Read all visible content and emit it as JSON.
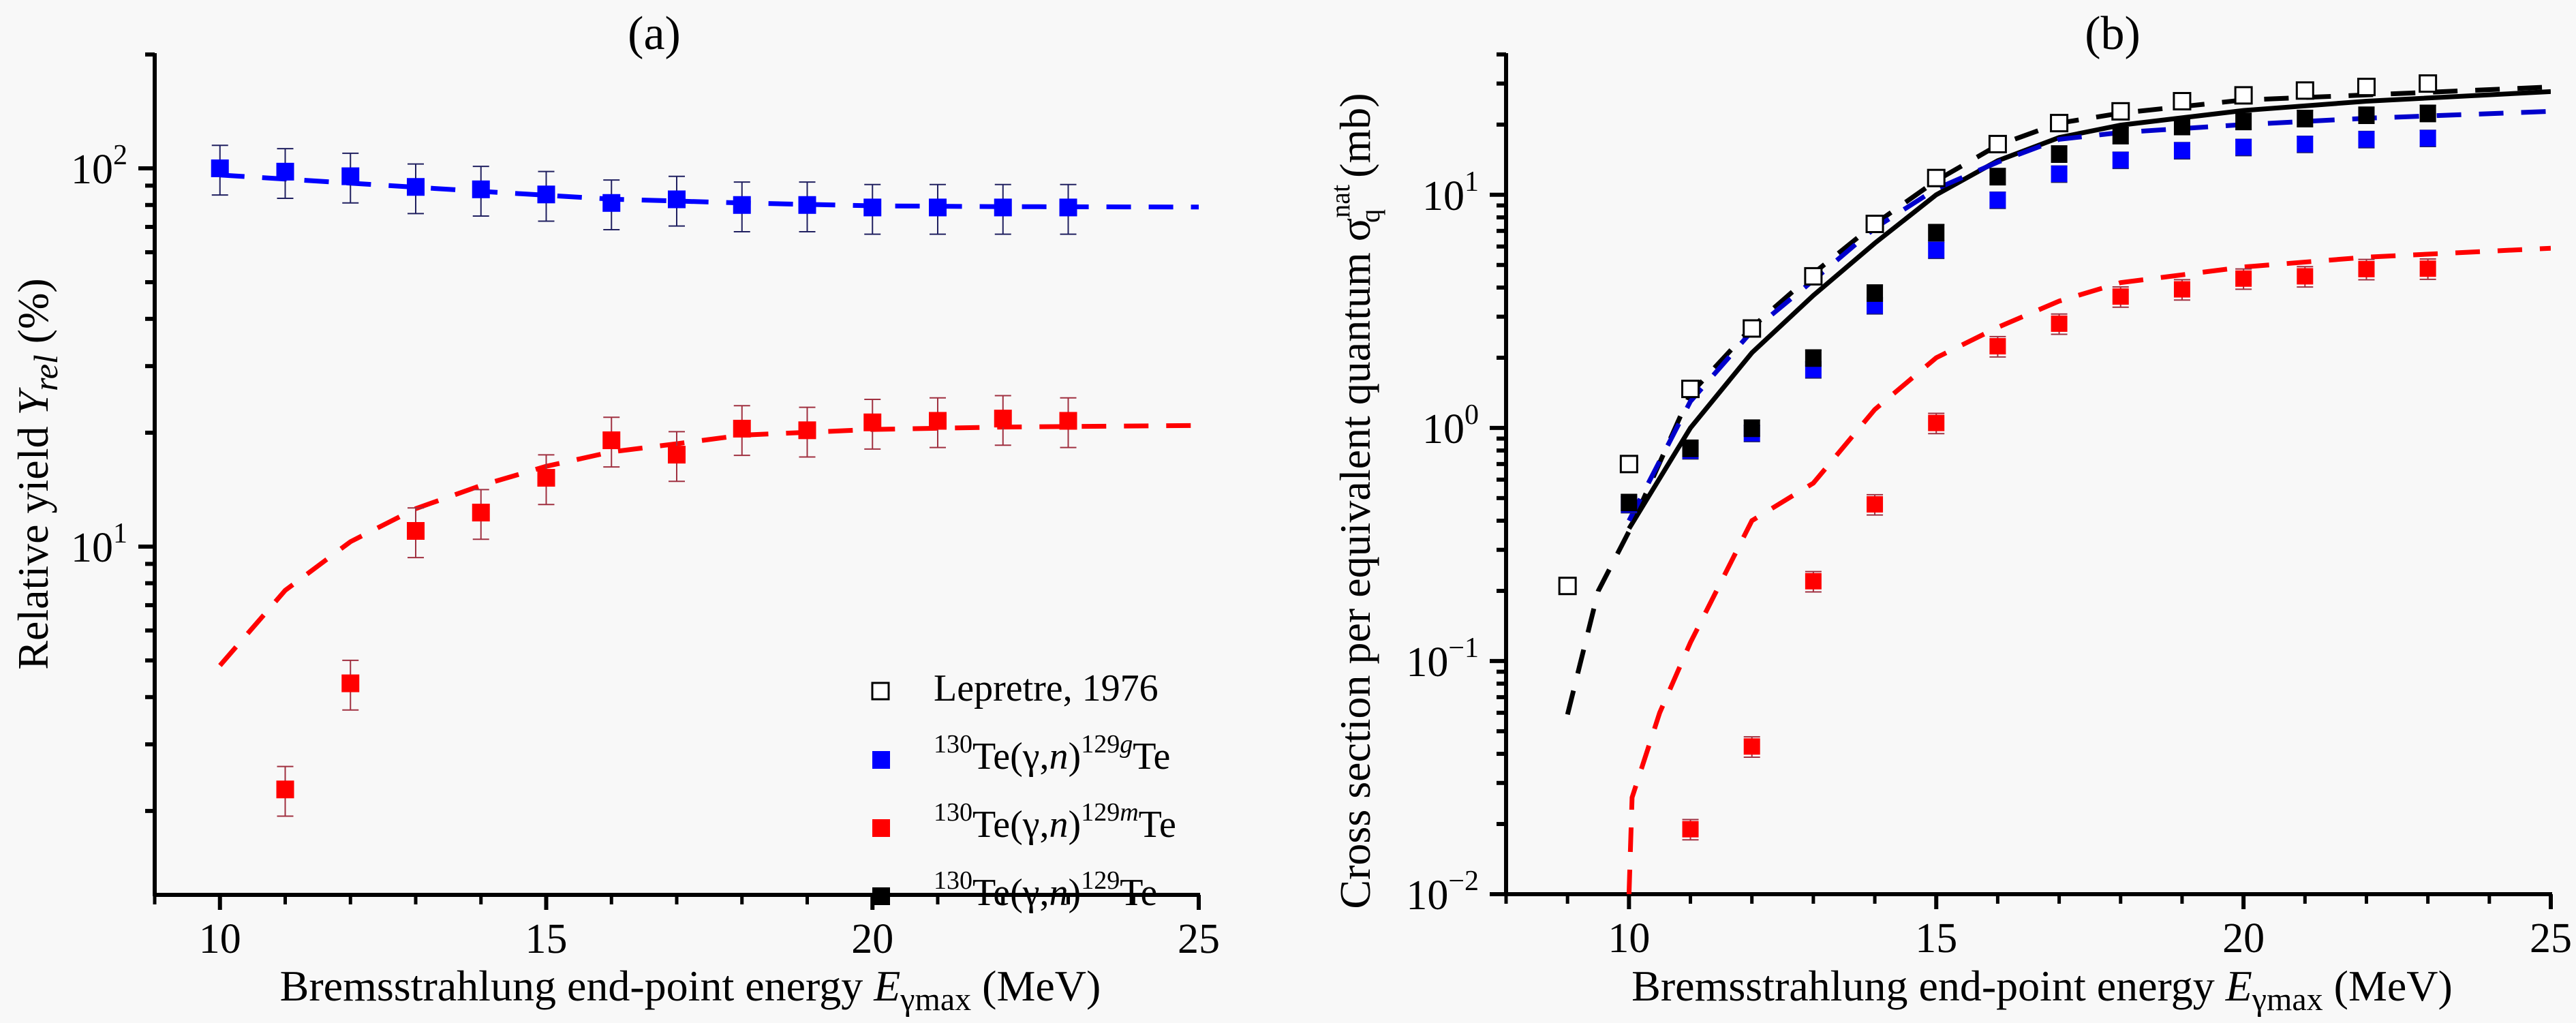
{
  "chart_data": [
    {
      "id": "a",
      "type": "scatter",
      "title": "(a)",
      "xlabel": "Bremsstrahlung end-point energy E",
      "xlabel_sub": "γmax",
      "xlabel_unit": " (MeV)",
      "ylabel": "Relative yield Y",
      "ylabel_sub": "rel",
      "ylabel_unit": " (%)",
      "xscale": "linear",
      "yscale": "log",
      "xlim": [
        9,
        25
      ],
      "ylim": [
        1.2,
        201.6
      ],
      "xticks": [
        10,
        15,
        20,
        25
      ],
      "xtick_labels": [
        "10",
        "15",
        "20",
        "25"
      ],
      "yticks": [
        10,
        100
      ],
      "ytick_labels": [
        {
          "base": "10",
          "exp": "1"
        },
        {
          "base": "10",
          "exp": "2"
        }
      ],
      "grid": false,
      "legend": {
        "placement": "bottom-right",
        "entries": [
          {
            "marker": "open-square",
            "color": "#000000",
            "label": "Lepretre, 1976",
            "parts": [
              {
                "t": "Lepretre, 1976",
                "s": "n"
              }
            ]
          },
          {
            "marker": "filled-square",
            "color": "#0000ff",
            "label": "130Te(γ,n)129gTe",
            "parts": [
              {
                "t": "130",
                "s": "sup"
              },
              {
                "t": "Te(γ,",
                "s": "n"
              },
              {
                "t": "n",
                "s": "i"
              },
              {
                "t": ")",
                "s": "n"
              },
              {
                "t": "129",
                "s": "sup"
              },
              {
                "t": "g",
                "s": "supi"
              },
              {
                "t": "Te",
                "s": "n"
              }
            ]
          },
          {
            "marker": "filled-square",
            "color": "#ff0000",
            "label": "130Te(γ,n)129mTe",
            "parts": [
              {
                "t": "130",
                "s": "sup"
              },
              {
                "t": "Te(γ,",
                "s": "n"
              },
              {
                "t": "n",
                "s": "i"
              },
              {
                "t": ")",
                "s": "n"
              },
              {
                "t": "129",
                "s": "sup"
              },
              {
                "t": "m",
                "s": "supi"
              },
              {
                "t": "Te",
                "s": "n"
              }
            ]
          },
          {
            "marker": "filled-square",
            "color": "#000000",
            "label": "130Te(γ,n)129Te",
            "parts": [
              {
                "t": "130",
                "s": "sup"
              },
              {
                "t": "Te(γ,",
                "s": "n"
              },
              {
                "t": "n",
                "s": "i"
              },
              {
                "t": ")",
                "s": "n"
              },
              {
                "t": "129",
                "s": "sup"
              },
              {
                "t": "Te",
                "s": "n"
              }
            ]
          }
        ]
      },
      "series": [
        {
          "name": "130Te(γ,n)129gTe experiment",
          "kind": "points",
          "color": "#0000ff",
          "x": [
            10,
            11,
            12,
            13,
            14,
            15,
            16,
            17,
            18,
            19,
            20,
            21,
            22,
            23
          ],
          "y": [
            100,
            98,
            95.3,
            89.3,
            88,
            85.3,
            81,
            82.8,
            80,
            80,
            78.8,
            78.8,
            78.8,
            78.8
          ],
          "err_rel": 0.15
        },
        {
          "name": "130Te(γ,n)129mTe experiment",
          "kind": "points",
          "color": "#ff0000",
          "x": [
            11,
            12,
            13,
            14,
            15,
            16,
            17,
            18,
            19,
            20,
            21,
            22,
            23
          ],
          "y": [
            2.28,
            4.35,
            11.0,
            12.3,
            15.2,
            19.1,
            17.5,
            20.5,
            20.3,
            21.3,
            21.5,
            21.8,
            21.5
          ],
          "err_rel": 0.15
        },
        {
          "name": "129gTe calculation",
          "kind": "dashed-line",
          "color": "#0000ff",
          "x": [
            10,
            12,
            14,
            16,
            18,
            20,
            22,
            25
          ],
          "y": [
            96,
            91.4,
            86.9,
            82.9,
            81,
            79.6,
            79.2,
            79
          ]
        },
        {
          "name": "129mTe calculation",
          "kind": "dashed-line",
          "color": "#ff0000",
          "x": [
            10,
            11,
            12,
            13,
            14,
            15,
            16,
            17,
            18,
            20,
            22,
            25
          ],
          "y": [
            4.85,
            7.66,
            10.3,
            12.6,
            14.5,
            16.3,
            17.8,
            18.7,
            19.7,
            20.4,
            20.7,
            20.9
          ]
        }
      ]
    },
    {
      "id": "b",
      "type": "scatter",
      "title": "(b)",
      "xlabel": "Bremsstrahlung end-point energy E",
      "xlabel_sub": "γmax",
      "xlabel_unit": " (MeV)",
      "ylabel": "Cross section per equivalent quantum σ",
      "ylabel_sub": "q",
      "ylabel_sup": "nat",
      "ylabel_unit": " (mb)",
      "xscale": "linear",
      "yscale": "log",
      "xlim": [
        8,
        25
      ],
      "ylim": [
        0.01,
        40.5
      ],
      "xticks": [
        10,
        15,
        20,
        25
      ],
      "xtick_labels": [
        "10",
        "15",
        "20",
        "25"
      ],
      "yticks": [
        0.01,
        0.1,
        1,
        10
      ],
      "ytick_labels": [
        {
          "base": "10",
          "exp": "−2"
        },
        {
          "base": "10",
          "exp": "−1"
        },
        {
          "base": "10",
          "exp": "0"
        },
        {
          "base": "10",
          "exp": "1"
        }
      ],
      "grid": false,
      "series": [
        {
          "name": "Lepretre, 1976",
          "kind": "open-points",
          "color": "#000000",
          "x": [
            9,
            10,
            11,
            12,
            13,
            14,
            15,
            16,
            17,
            18,
            19,
            20,
            21,
            22,
            23
          ],
          "y": [
            0.21,
            0.7,
            1.47,
            2.67,
            4.47,
            7.5,
            11.8,
            16.5,
            20.3,
            22.8,
            25.2,
            26.7,
            28.0,
            29.0,
            30.0
          ]
        },
        {
          "name": "130Te(γ,n)129gTe experiment",
          "kind": "points",
          "color": "#0000ff",
          "x": [
            10,
            11,
            12,
            13,
            14,
            15,
            16,
            17,
            18,
            19,
            20,
            21,
            22,
            23
          ],
          "y": [
            0.47,
            0.8,
            0.95,
            1.78,
            3.35,
            5.8,
            9.5,
            12.3,
            14.1,
            15.5,
            16.0,
            16.5,
            17.3,
            17.5
          ],
          "err_rel": 0.08
        },
        {
          "name": "130Te(γ,n)129Te experiment",
          "kind": "points",
          "color": "#000000",
          "x": [
            10,
            11,
            12,
            13,
            14,
            15,
            16,
            17,
            18,
            19,
            20,
            21,
            22,
            23
          ],
          "y": [
            0.48,
            0.82,
            1.0,
            2.0,
            3.8,
            6.9,
            12.0,
            15.0,
            18.0,
            19.7,
            20.7,
            21.3,
            22.0,
            22.4
          ],
          "err_rel": 0.08
        },
        {
          "name": "130Te(γ,n)129mTe experiment",
          "kind": "points",
          "color": "#ff0000",
          "x": [
            11,
            12,
            13,
            14,
            15,
            16,
            17,
            18,
            19,
            20,
            21,
            22,
            23
          ],
          "y": [
            0.019,
            0.043,
            0.22,
            0.47,
            1.05,
            2.24,
            2.8,
            3.66,
            3.93,
            4.37,
            4.47,
            4.8,
            4.82
          ],
          "err_rel": 0.1
        },
        {
          "name": "Lepretre evaluation (dashed black)",
          "kind": "dashed-line",
          "color": "#000000",
          "x": [
            9,
            9.5,
            10,
            11,
            12,
            13,
            14,
            15,
            16,
            17,
            18,
            20,
            22,
            25
          ],
          "y": [
            0.059,
            0.2,
            0.36,
            1.4,
            2.7,
            4.6,
            7.5,
            11.5,
            16.3,
            20.3,
            22.4,
            25.5,
            26.8,
            29
          ]
        },
        {
          "name": "129Te calculation (solid black)",
          "kind": "solid-line",
          "color": "#000000",
          "x": [
            10,
            11,
            12,
            13,
            14,
            15,
            16,
            17,
            18,
            20,
            22,
            25
          ],
          "y": [
            0.37,
            1.0,
            2.1,
            3.7,
            6.2,
            10,
            14,
            17.6,
            19.9,
            23,
            25.2,
            27.7
          ]
        },
        {
          "name": "129gTe calculation (dashed blue)",
          "kind": "dashed-line",
          "color": "#0000cc",
          "x": [
            10,
            11,
            12,
            13,
            14,
            15,
            16,
            17,
            18,
            20,
            22,
            25
          ],
          "y": [
            0.4,
            1.3,
            2.6,
            4.3,
            7.2,
            10.6,
            13.8,
            17.3,
            18.5,
            20,
            21.3,
            22.8
          ]
        },
        {
          "name": "129mTe calculation (dashed red)",
          "kind": "dashed-line",
          "color": "#ff0000",
          "x": [
            10,
            10.05,
            10.5,
            11,
            12,
            13,
            14,
            15,
            16,
            17,
            18,
            20,
            22,
            25
          ],
          "y": [
            0.01,
            0.026,
            0.06,
            0.12,
            0.4,
            0.58,
            1.2,
            2.0,
            2.7,
            3.5,
            4.2,
            4.9,
            5.4,
            5.9
          ]
        }
      ]
    }
  ]
}
